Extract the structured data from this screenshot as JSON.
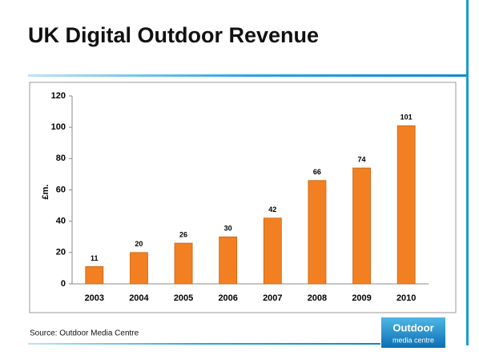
{
  "chart_data": {
    "type": "bar",
    "title": "UK Digital Outdoor Revenue",
    "y_label": "£m.",
    "categories": [
      "2003",
      "2004",
      "2005",
      "2006",
      "2007",
      "2008",
      "2009",
      "2010"
    ],
    "values": [
      11,
      20,
      26,
      30,
      42,
      66,
      74,
      101
    ],
    "color": "#f28022",
    "ylim": [
      0,
      120
    ],
    "yticks": [
      0,
      20,
      40,
      60,
      80,
      100,
      120
    ],
    "grid": false,
    "source": "Source: Outdoor Media Centre"
  },
  "logo": {
    "line1": "Outdoor",
    "line2": "media centre"
  }
}
